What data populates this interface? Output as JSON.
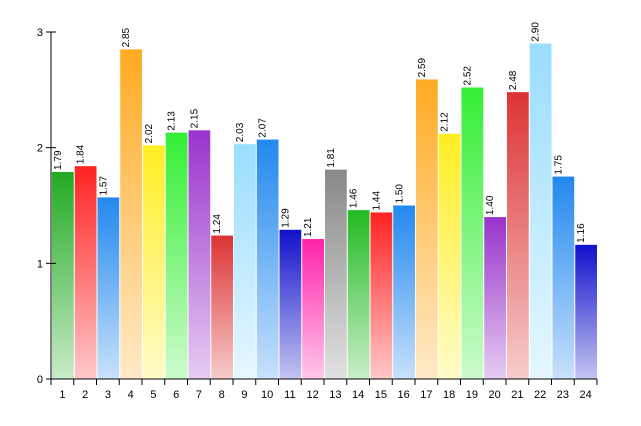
{
  "chart_data": {
    "type": "bar",
    "categories": [
      "1",
      "2",
      "3",
      "4",
      "5",
      "6",
      "7",
      "8",
      "9",
      "10",
      "11",
      "12",
      "13",
      "14",
      "15",
      "16",
      "17",
      "18",
      "19",
      "20",
      "21",
      "22",
      "23",
      "24"
    ],
    "values": [
      1.79,
      1.84,
      1.57,
      2.85,
      2.02,
      2.13,
      2.15,
      1.24,
      2.03,
      2.07,
      1.29,
      1.21,
      1.81,
      1.46,
      1.44,
      1.5,
      2.59,
      2.12,
      2.52,
      1.4,
      2.48,
      2.9,
      1.75,
      1.16
    ],
    "data_labels": [
      "1.79",
      "1.84",
      "1.57",
      "2.85",
      "2.02",
      "2.13",
      "2.15",
      "1.24",
      "2.03",
      "2.07",
      "1.29",
      "1.21",
      "1.81",
      "1.46",
      "1.44",
      "1.50",
      "2.59",
      "2.12",
      "2.52",
      "1.40",
      "2.48",
      "2.90",
      "1.75",
      "1.16"
    ],
    "yticks": [
      "0",
      "1",
      "2",
      "3"
    ],
    "ylim": [
      0,
      3
    ],
    "colors": [
      "#22aa22",
      "#ff2222",
      "#2288ee",
      "#ffaa22",
      "#ffee22",
      "#33ee33",
      "#9933cc",
      "#dd3333",
      "#99ddff",
      "#2288ee",
      "#1111cc",
      "#ff22aa",
      "#888888",
      "#22bb22",
      "#ff2222",
      "#2288ee",
      "#ffaa22",
      "#ffee22",
      "#33ee33",
      "#9933cc",
      "#dd3333",
      "#99ddff",
      "#2288ee",
      "#1111cc"
    ],
    "title": "",
    "xlabel": "",
    "ylabel": "",
    "grid": false,
    "legend": "none"
  }
}
